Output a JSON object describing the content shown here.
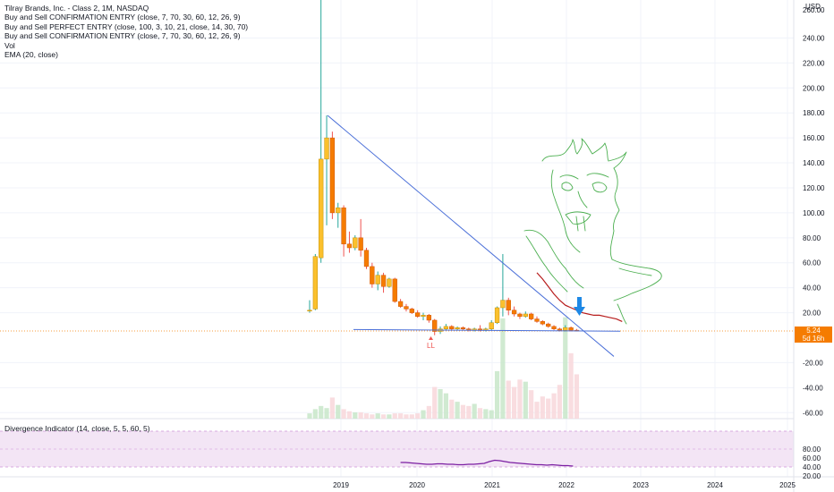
{
  "legend": {
    "title": "Tilray Brands, Inc. - Class 2, 1M, NASDAQ",
    "lines": [
      "Buy and Sell CONFIRMATION ENTRY (close, 7, 70, 30, 60, 12, 26, 9)",
      "Buy and Sell PERFECT ENTRY (close, 100, 3, 10, 21, close, 14, 30, 70)",
      "Buy and Sell CONFIRMATION ENTRY (close, 7, 70, 30, 60, 12, 26, 9)",
      "Vol",
      "EMA (20, close)"
    ]
  },
  "indicator_legend": "Divergence Indicator (14, close, 5, 5, 60, 5)",
  "currency": "USD",
  "last_price": {
    "value": "5.24",
    "countdown": "5d 16h"
  },
  "marker_label": "LL",
  "colors": {
    "up": "#26a69a",
    "down": "#ef5350",
    "candle_up_fill": "#fbc02d",
    "candle_down_fill": "#f57c00",
    "trendline": "#4a6fd8",
    "ema": "#b71c1c",
    "drawing": "#4caf50",
    "rsi": "#7b1fa2",
    "rsi_band": "#f3e5f5",
    "arrow": "#1e88e5"
  },
  "chart_data": {
    "type": "candlestick",
    "title": "Tilray Brands, Inc. - Class 2, 1M, NASDAQ",
    "price_axis_ticks": [
      -60,
      -40,
      -20,
      20,
      40,
      60,
      80,
      100,
      120,
      140,
      160,
      180,
      200,
      220,
      240
    ],
    "price_axis_top_partial": "260.00",
    "rsi_axis_ticks": [
      20,
      40,
      60,
      80
    ],
    "rsi_band": [
      30,
      70
    ],
    "x_axis_labels": [
      "2019",
      "2020",
      "2021",
      "2022",
      "2023",
      "2024",
      "2025"
    ],
    "candles": [
      {
        "o": 22,
        "h": 30,
        "l": 20,
        "c": 22
      },
      {
        "o": 23,
        "h": 67,
        "l": 22,
        "c": 65
      },
      {
        "o": 64,
        "h": 300,
        "l": 60,
        "c": 143
      },
      {
        "o": 143,
        "h": 178,
        "l": 90,
        "c": 160
      },
      {
        "o": 160,
        "h": 165,
        "l": 95,
        "c": 100
      },
      {
        "o": 100,
        "h": 108,
        "l": 88,
        "c": 104
      },
      {
        "o": 104,
        "h": 106,
        "l": 65,
        "c": 75
      },
      {
        "o": 75,
        "h": 85,
        "l": 68,
        "c": 72
      },
      {
        "o": 72,
        "h": 82,
        "l": 70,
        "c": 80
      },
      {
        "o": 80,
        "h": 95,
        "l": 65,
        "c": 70
      },
      {
        "o": 70,
        "h": 72,
        "l": 55,
        "c": 57
      },
      {
        "o": 57,
        "h": 60,
        "l": 40,
        "c": 43
      },
      {
        "o": 43,
        "h": 53,
        "l": 38,
        "c": 50
      },
      {
        "o": 50,
        "h": 52,
        "l": 36,
        "c": 41
      },
      {
        "o": 41,
        "h": 48,
        "l": 40,
        "c": 47
      },
      {
        "o": 47,
        "h": 48,
        "l": 28,
        "c": 29
      },
      {
        "o": 29,
        "h": 31,
        "l": 24,
        "c": 25
      },
      {
        "o": 25,
        "h": 27,
        "l": 21,
        "c": 23
      },
      {
        "o": 23,
        "h": 24,
        "l": 19,
        "c": 20
      },
      {
        "o": 20,
        "h": 22,
        "l": 16,
        "c": 17
      },
      {
        "o": 17,
        "h": 20,
        "l": 14,
        "c": 18
      },
      {
        "o": 18,
        "h": 19,
        "l": 12,
        "c": 14
      },
      {
        "o": 14,
        "h": 15,
        "l": 2,
        "c": 5
      },
      {
        "o": 5,
        "h": 9,
        "l": 3,
        "c": 7
      },
      {
        "o": 7,
        "h": 11,
        "l": 6,
        "c": 9
      },
      {
        "o": 9,
        "h": 10,
        "l": 6,
        "c": 7
      },
      {
        "o": 7,
        "h": 9,
        "l": 6,
        "c": 8
      },
      {
        "o": 8,
        "h": 9,
        "l": 6,
        "c": 7
      },
      {
        "o": 7,
        "h": 8,
        "l": 5,
        "c": 6
      },
      {
        "o": 6,
        "h": 8,
        "l": 5,
        "c": 7
      },
      {
        "o": 7,
        "h": 10,
        "l": 5,
        "c": 6
      },
      {
        "o": 6,
        "h": 8,
        "l": 5,
        "c": 7
      },
      {
        "o": 7,
        "h": 14,
        "l": 6,
        "c": 12
      },
      {
        "o": 12,
        "h": 25,
        "l": 11,
        "c": 24
      },
      {
        "o": 24,
        "h": 67,
        "l": 17,
        "c": 30
      },
      {
        "o": 30,
        "h": 32,
        "l": 18,
        "c": 22
      },
      {
        "o": 22,
        "h": 25,
        "l": 17,
        "c": 19
      },
      {
        "o": 19,
        "h": 20,
        "l": 15,
        "c": 17
      },
      {
        "o": 17,
        "h": 21,
        "l": 16,
        "c": 19
      },
      {
        "o": 19,
        "h": 20,
        "l": 14,
        "c": 15
      },
      {
        "o": 15,
        "h": 17,
        "l": 12,
        "c": 13
      },
      {
        "o": 13,
        "h": 14,
        "l": 10,
        "c": 11
      },
      {
        "o": 11,
        "h": 12,
        "l": 8,
        "c": 9
      },
      {
        "o": 9,
        "h": 10,
        "l": 6,
        "c": 7
      },
      {
        "o": 7,
        "h": 8,
        "l": 5,
        "c": 6
      },
      {
        "o": 6,
        "h": 10,
        "l": 5,
        "c": 8
      },
      {
        "o": 8,
        "h": 9,
        "l": 5,
        "c": 6
      },
      {
        "o": 6,
        "h": 7,
        "l": 5,
        "c": 5.24
      }
    ],
    "volume": [
      5,
      9,
      12,
      10,
      20,
      13,
      9,
      7,
      6,
      6,
      5,
      4,
      5,
      4,
      4,
      5,
      5,
      4,
      4,
      5,
      8,
      12,
      30,
      28,
      24,
      18,
      16,
      13,
      12,
      14,
      10,
      9,
      8,
      45,
      95,
      36,
      30,
      37,
      35,
      27,
      16,
      21,
      19,
      24,
      32,
      96,
      62,
      42
    ],
    "ema_20": [
      {
        "x": 40,
        "y": 52
      },
      {
        "x": 41,
        "y": 47
      },
      {
        "x": 42,
        "y": 41
      },
      {
        "x": 43,
        "y": 35
      },
      {
        "x": 44,
        "y": 30
      },
      {
        "x": 45,
        "y": 26
      },
      {
        "x": 46,
        "y": 24
      },
      {
        "x": 47,
        "y": 22
      },
      {
        "x": 48,
        "y": 20
      },
      {
        "x": 49,
        "y": 19
      },
      {
        "x": 50,
        "y": 18
      },
      {
        "x": 51,
        "y": 18
      },
      {
        "x": 52,
        "y": 17
      },
      {
        "x": 53,
        "y": 16
      },
      {
        "x": 54,
        "y": 15
      },
      {
        "x": 55,
        "y": 13
      }
    ],
    "rsi": [
      50,
      50,
      49,
      48,
      47,
      46,
      46,
      47,
      47,
      46,
      46,
      45,
      45,
      46,
      46,
      47,
      48,
      52,
      55,
      54,
      52,
      50,
      49,
      48,
      47,
      46,
      45,
      45,
      44,
      45,
      44,
      43,
      43,
      42
    ]
  }
}
